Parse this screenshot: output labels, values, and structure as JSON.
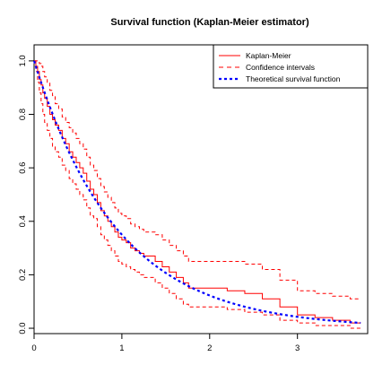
{
  "chart_data": {
    "type": "line",
    "title": "Survival function (Kaplan-Meier estimator)",
    "xlabel": "",
    "ylabel": "",
    "xlim": [
      0,
      3.8
    ],
    "ylim": [
      -0.02,
      1.06
    ],
    "x_ticks": [
      0,
      1,
      2,
      3
    ],
    "y_ticks": [
      0.0,
      0.2,
      0.4,
      0.6,
      0.8,
      1.0
    ],
    "x_tick_labels": [
      "0",
      "1",
      "2",
      "3"
    ],
    "y_tick_labels": [
      "0.0",
      "0.2",
      "0.4",
      "0.6",
      "0.8",
      "1.0"
    ],
    "grid": false,
    "legend_position": "top-right",
    "colors": {
      "km": "#ff0000",
      "ci": "#ff0000",
      "theoretical": "#0000ff"
    },
    "series": [
      {
        "name": "Kaplan-Meier",
        "style": "solid",
        "color": "#ff0000",
        "x": [
          0,
          0.02,
          0.04,
          0.06,
          0.08,
          0.1,
          0.12,
          0.15,
          0.18,
          0.21,
          0.24,
          0.28,
          0.32,
          0.36,
          0.4,
          0.44,
          0.48,
          0.52,
          0.56,
          0.6,
          0.64,
          0.68,
          0.72,
          0.76,
          0.8,
          0.84,
          0.88,
          0.92,
          0.96,
          1.0,
          1.05,
          1.1,
          1.15,
          1.2,
          1.25,
          1.3,
          1.38,
          1.46,
          1.54,
          1.62,
          1.7,
          1.76,
          1.95,
          2.2,
          2.4,
          2.6,
          2.8,
          3.0,
          3.2,
          3.4,
          3.6,
          3.72
        ],
        "y": [
          1.0,
          0.98,
          0.96,
          0.93,
          0.91,
          0.88,
          0.86,
          0.83,
          0.8,
          0.78,
          0.76,
          0.74,
          0.71,
          0.69,
          0.66,
          0.64,
          0.62,
          0.6,
          0.58,
          0.55,
          0.52,
          0.5,
          0.47,
          0.44,
          0.42,
          0.4,
          0.38,
          0.36,
          0.34,
          0.33,
          0.32,
          0.3,
          0.29,
          0.28,
          0.27,
          0.27,
          0.25,
          0.23,
          0.21,
          0.19,
          0.17,
          0.15,
          0.15,
          0.14,
          0.13,
          0.11,
          0.08,
          0.05,
          0.04,
          0.03,
          0.02,
          0.02
        ]
      },
      {
        "name": "Confidence intervals",
        "style": "dashed",
        "color": "#ff0000",
        "x": [
          0,
          0.02,
          0.04,
          0.06,
          0.08,
          0.1,
          0.12,
          0.15,
          0.18,
          0.21,
          0.24,
          0.28,
          0.32,
          0.36,
          0.4,
          0.44,
          0.48,
          0.52,
          0.56,
          0.6,
          0.64,
          0.68,
          0.72,
          0.76,
          0.8,
          0.84,
          0.88,
          0.92,
          0.96,
          1.0,
          1.05,
          1.1,
          1.15,
          1.2,
          1.25,
          1.3,
          1.38,
          1.46,
          1.54,
          1.62,
          1.7,
          1.76,
          1.95,
          2.2,
          2.4,
          2.6,
          2.8,
          3.0,
          3.2,
          3.4,
          3.6,
          3.72
        ],
        "y": [
          1.0,
          1.0,
          1.0,
          0.99,
          0.98,
          0.96,
          0.94,
          0.92,
          0.89,
          0.87,
          0.84,
          0.82,
          0.79,
          0.77,
          0.75,
          0.73,
          0.71,
          0.69,
          0.67,
          0.64,
          0.61,
          0.59,
          0.56,
          0.53,
          0.51,
          0.49,
          0.47,
          0.45,
          0.43,
          0.42,
          0.41,
          0.39,
          0.38,
          0.37,
          0.36,
          0.36,
          0.35,
          0.33,
          0.31,
          0.29,
          0.27,
          0.25,
          0.25,
          0.25,
          0.24,
          0.22,
          0.18,
          0.14,
          0.13,
          0.12,
          0.11,
          0.11
        ]
      },
      {
        "name": "Confidence intervals (lower)",
        "style": "dashed",
        "color": "#ff0000",
        "x": [
          0,
          0.02,
          0.04,
          0.06,
          0.08,
          0.1,
          0.12,
          0.15,
          0.18,
          0.21,
          0.24,
          0.28,
          0.32,
          0.36,
          0.4,
          0.44,
          0.48,
          0.52,
          0.56,
          0.6,
          0.64,
          0.68,
          0.72,
          0.76,
          0.8,
          0.84,
          0.88,
          0.92,
          0.96,
          1.0,
          1.05,
          1.1,
          1.15,
          1.2,
          1.25,
          1.3,
          1.38,
          1.46,
          1.54,
          1.62,
          1.7,
          1.76,
          1.95,
          2.2,
          2.4,
          2.6,
          2.8,
          3.0,
          3.2,
          3.4,
          3.6,
          3.72
        ],
        "y": [
          1.0,
          0.96,
          0.92,
          0.88,
          0.84,
          0.8,
          0.77,
          0.74,
          0.71,
          0.68,
          0.66,
          0.64,
          0.61,
          0.59,
          0.56,
          0.54,
          0.52,
          0.5,
          0.48,
          0.45,
          0.42,
          0.41,
          0.38,
          0.35,
          0.33,
          0.31,
          0.29,
          0.27,
          0.25,
          0.24,
          0.23,
          0.22,
          0.21,
          0.2,
          0.19,
          0.19,
          0.17,
          0.15,
          0.13,
          0.11,
          0.09,
          0.08,
          0.08,
          0.07,
          0.06,
          0.05,
          0.03,
          0.02,
          0.01,
          0.01,
          0.0,
          0.0
        ]
      },
      {
        "name": "Theoretical survival function",
        "style": "dotted",
        "color": "#0000ff",
        "curve": "exp",
        "rate": 1.05,
        "x_range": [
          0,
          3.72
        ]
      }
    ],
    "legend": [
      {
        "label": "Kaplan-Meier",
        "style": "solid",
        "color": "#ff0000"
      },
      {
        "label": "Confidence intervals",
        "style": "dashed",
        "color": "#ff0000"
      },
      {
        "label": "Theoretical survival function",
        "style": "dotted",
        "color": "#0000ff"
      }
    ]
  }
}
